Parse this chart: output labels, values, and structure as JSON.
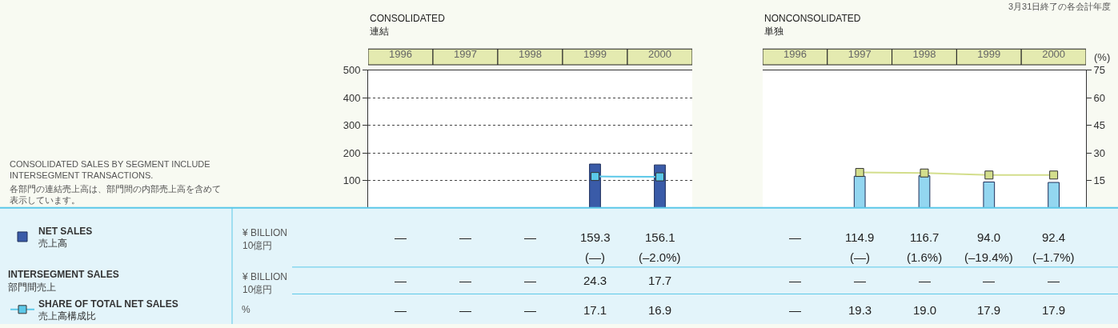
{
  "chart_data": [
    {
      "type": "bar",
      "title": "CONSOLIDATED\n連結",
      "categories": [
        "1996",
        "1997",
        "1998",
        "1999",
        "2000"
      ],
      "ylim": [
        0,
        500
      ],
      "yticks": [
        100,
        200,
        300,
        400,
        500
      ],
      "y2lim": [
        0,
        75
      ],
      "grid": "y",
      "legend": "bottom left",
      "marker": "square",
      "line_style": "solid",
      "series": [
        {
          "name": "NET SALES\n売上高",
          "color": "#3a5ba8",
          "values": [
            null,
            null,
            null,
            159.3,
            156.1
          ],
          "value_labels": [
            "—",
            "—",
            "—",
            "159.3",
            "156.1"
          ]
        },
        {
          "type": "other",
          "values": [
            null,
            null,
            null,
            null,
            null
          ],
          "value_labels": [
            null,
            null,
            null,
            "(—)",
            "(–2.0%)"
          ]
        },
        {
          "name": "INTERSEGMENT SALES\n部門間売上",
          "type": "other",
          "values": [
            null,
            null,
            null,
            null,
            null
          ],
          "value_labels": [
            "—",
            "—",
            "—",
            "24.3",
            "17.7"
          ]
        },
        {
          "name": "SHARE OF TOTAL NET SALES\n売上高構成比",
          "type": "line",
          "axis": "y2",
          "color": "#5bc8e8",
          "values": [
            null,
            null,
            null,
            17.1,
            16.9
          ],
          "value_labels": [
            "—",
            "—",
            "—",
            "17.1",
            "16.9"
          ]
        }
      ],
      "annotations": [
        "¥ BILLION\n10億円",
        "¥ BILLION\n10億円",
        "%",
        "CONSOLIDATED SALES BY SEGMENT INCLUDE\nINTERSEGMENT TRANSACTIONS.",
        "各部門の連結売上高は、部門間の内部売上高を含めて表示しています。",
        "3月31日終了の各会計年度"
      ]
    },
    {
      "type": "bar",
      "title": "NONCONSOLIDATED\n単独",
      "categories": [
        "1996",
        "1997",
        "1998",
        "1999",
        "2000"
      ],
      "ylim": [
        0,
        500
      ],
      "y2lim": [
        0,
        75
      ],
      "y2ticks": [
        15,
        30,
        45,
        60,
        75
      ],
      "y2label": "(%)",
      "grid": "y",
      "marker": "square",
      "line_style": "solid",
      "series": [
        {
          "color": "#93d6f0",
          "values": [
            null,
            114.9,
            116.7,
            94.0,
            92.4
          ],
          "value_labels": [
            "—",
            "114.9",
            "116.7",
            "94.0",
            "92.4"
          ]
        },
        {
          "type": "other",
          "values": [
            null,
            null,
            null,
            null,
            null
          ],
          "value_labels": [
            null,
            "(—)",
            "(1.6%)",
            "(–19.4%)",
            "(–1.7%)"
          ]
        },
        {
          "type": "other",
          "values": [
            null,
            null,
            null,
            null,
            null
          ],
          "value_labels": [
            "—",
            "—",
            "—",
            "—",
            "—"
          ]
        },
        {
          "type": "line",
          "axis": "y2",
          "color": "#d3de8c",
          "values": [
            null,
            19.3,
            19.0,
            17.9,
            17.9
          ],
          "value_labels": [
            "—",
            "19.3",
            "19.0",
            "17.9",
            "17.9"
          ]
        }
      ]
    }
  ]
}
